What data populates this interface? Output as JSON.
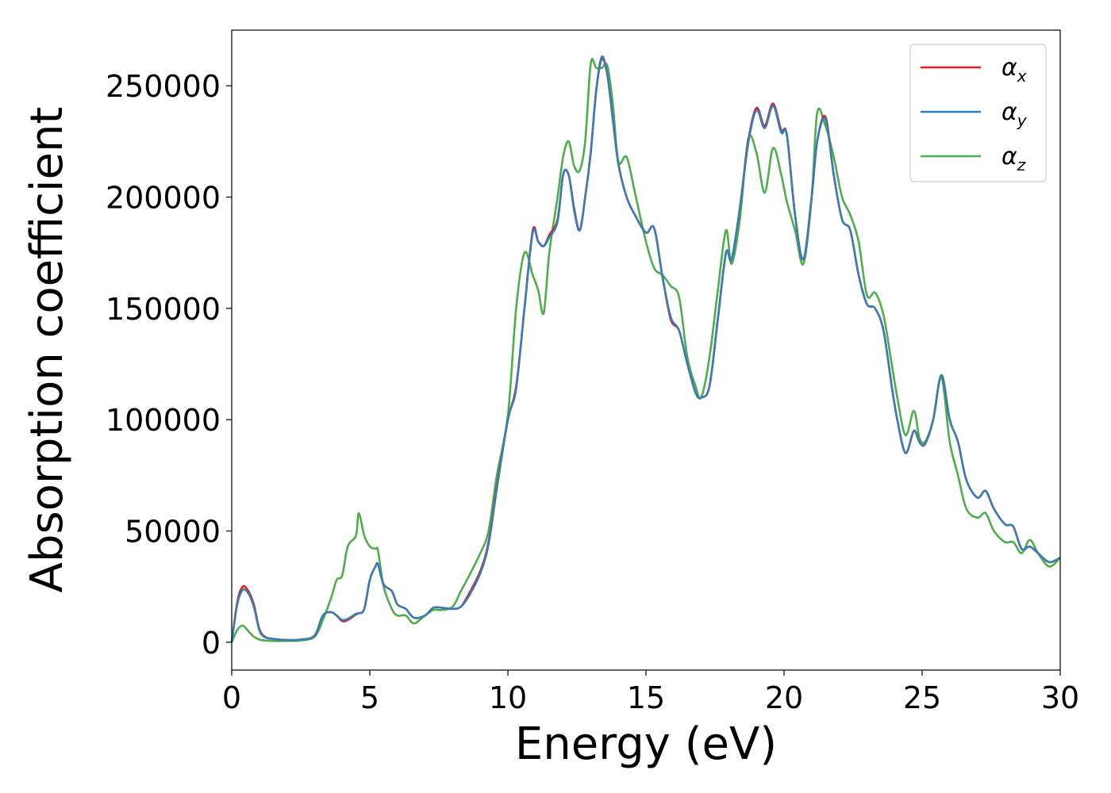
{
  "chart_data": {
    "type": "line",
    "xlabel": "Energy (eV)",
    "ylabel": "Absorption coefficient",
    "xlim": [
      0,
      30
    ],
    "ylim": [
      -12500,
      275000
    ],
    "xticks": [
      "0",
      "5",
      "10",
      "15",
      "20",
      "25",
      "30"
    ],
    "yticks": [
      "0",
      "50000",
      "100000",
      "150000",
      "200000",
      "250000"
    ],
    "grid": false,
    "legend_position": "top-right",
    "x": [
      0,
      0.2,
      0.4,
      0.6,
      0.8,
      1.0,
      1.2,
      1.5,
      2.0,
      2.5,
      3.0,
      3.3,
      3.6,
      3.8,
      4.0,
      4.2,
      4.5,
      4.6,
      4.8,
      5.0,
      5.2,
      5.3,
      5.5,
      5.8,
      6.0,
      6.3,
      6.6,
      7.0,
      7.3,
      7.6,
      8.0,
      8.3,
      8.6,
      9.0,
      9.3,
      9.6,
      10.0,
      10.3,
      10.6,
      10.9,
      11.1,
      11.3,
      11.5,
      11.8,
      12.0,
      12.2,
      12.4,
      12.6,
      12.8,
      13.0,
      13.2,
      13.4,
      13.6,
      13.8,
      14.0,
      14.3,
      14.6,
      15.0,
      15.3,
      15.6,
      15.9,
      16.2,
      16.5,
      16.8,
      17.0,
      17.3,
      17.6,
      17.9,
      18.1,
      18.4,
      18.7,
      19.0,
      19.3,
      19.6,
      19.9,
      20.1,
      20.4,
      20.7,
      21.0,
      21.2,
      21.5,
      21.8,
      22.1,
      22.4,
      22.7,
      23.0,
      23.3,
      23.6,
      23.9,
      24.1,
      24.4,
      24.7,
      24.9,
      25.1,
      25.4,
      25.7,
      26.0,
      26.3,
      26.6,
      27.0,
      27.3,
      27.6,
      28.0,
      28.3,
      28.6,
      28.9,
      29.2,
      29.6,
      30.0
    ],
    "series": [
      {
        "name": "αx",
        "color": "#e41a1c",
        "values": [
          0,
          18000,
          25000,
          23000,
          17000,
          6000,
          2500,
          1500,
          1000,
          1200,
          3000,
          12000,
          13500,
          12000,
          9500,
          10000,
          12500,
          13000,
          15000,
          28000,
          34000,
          35000,
          26000,
          23000,
          17000,
          15000,
          11000,
          12000,
          15500,
          15500,
          15000,
          16000,
          22000,
          32000,
          45000,
          70000,
          100000,
          115000,
          150000,
          185000,
          180000,
          178000,
          183000,
          190000,
          210000,
          210000,
          195000,
          185000,
          200000,
          220000,
          248000,
          262000,
          255000,
          235000,
          215000,
          200000,
          192000,
          184000,
          186000,
          164000,
          145000,
          140000,
          125000,
          112000,
          110000,
          115000,
          145000,
          175000,
          172000,
          195000,
          225000,
          240000,
          232000,
          242000,
          230000,
          228000,
          192000,
          172000,
          200000,
          225000,
          236000,
          210000,
          190000,
          185000,
          165000,
          152000,
          150000,
          140000,
          115000,
          100000,
          85000,
          95000,
          90000,
          89000,
          100000,
          120000,
          100000,
          90000,
          73000,
          65000,
          68000,
          60000,
          53000,
          52000,
          42000,
          43000,
          40000,
          36000,
          38000
        ]
      },
      {
        "name": "αy",
        "color": "#377eb8",
        "values": [
          0,
          17000,
          23500,
          22000,
          16000,
          5500,
          2300,
          1500,
          1000,
          1200,
          3000,
          12000,
          13500,
          12000,
          10000,
          10500,
          12800,
          13000,
          15000,
          28000,
          34000,
          35000,
          26000,
          23000,
          17000,
          15000,
          11000,
          12000,
          15500,
          15500,
          15000,
          16000,
          21000,
          31000,
          44000,
          69000,
          100000,
          114000,
          150000,
          184000,
          180000,
          178000,
          182000,
          189000,
          210000,
          210000,
          194000,
          185000,
          200000,
          220000,
          248000,
          263000,
          255000,
          235000,
          215000,
          200000,
          192000,
          184000,
          186000,
          164000,
          146000,
          140000,
          125000,
          112000,
          110000,
          115000,
          145000,
          175000,
          172000,
          195000,
          224000,
          239000,
          231000,
          241000,
          229000,
          228000,
          192000,
          172000,
          200000,
          225000,
          235000,
          210000,
          190000,
          185000,
          165000,
          152000,
          150000,
          140000,
          115000,
          100000,
          85000,
          95000,
          90000,
          89000,
          100000,
          120000,
          100000,
          90000,
          73000,
          65000,
          68000,
          60000,
          53000,
          52000,
          42000,
          43000,
          40000,
          36000,
          38000
        ]
      },
      {
        "name": "αz",
        "color": "#4daf4a",
        "values": [
          0,
          5500,
          7500,
          5000,
          2500,
          1200,
          800,
          600,
          600,
          800,
          2500,
          10000,
          20000,
          28000,
          30000,
          43000,
          48000,
          58000,
          48000,
          43000,
          42000,
          41000,
          25000,
          15000,
          12000,
          12000,
          8500,
          12000,
          14500,
          14500,
          16000,
          23000,
          30000,
          40000,
          50000,
          75000,
          102000,
          150000,
          175000,
          165000,
          158000,
          148000,
          175000,
          200000,
          218000,
          225000,
          214000,
          212000,
          225000,
          260000,
          258000,
          258000,
          259000,
          242000,
          216000,
          218000,
          202000,
          180000,
          168000,
          165000,
          160000,
          155000,
          128000,
          115000,
          110000,
          128000,
          158000,
          185000,
          170000,
          190000,
          226000,
          220000,
          202000,
          222000,
          210000,
          198000,
          185000,
          170000,
          200000,
          238000,
          232000,
          218000,
          200000,
          192000,
          180000,
          156000,
          157000,
          147000,
          125000,
          110000,
          93000,
          104000,
          92000,
          90000,
          100000,
          119000,
          90000,
          75000,
          60000,
          56000,
          58000,
          50000,
          45000,
          45000,
          40000,
          46000,
          40000,
          34000,
          38000
        ]
      }
    ]
  }
}
